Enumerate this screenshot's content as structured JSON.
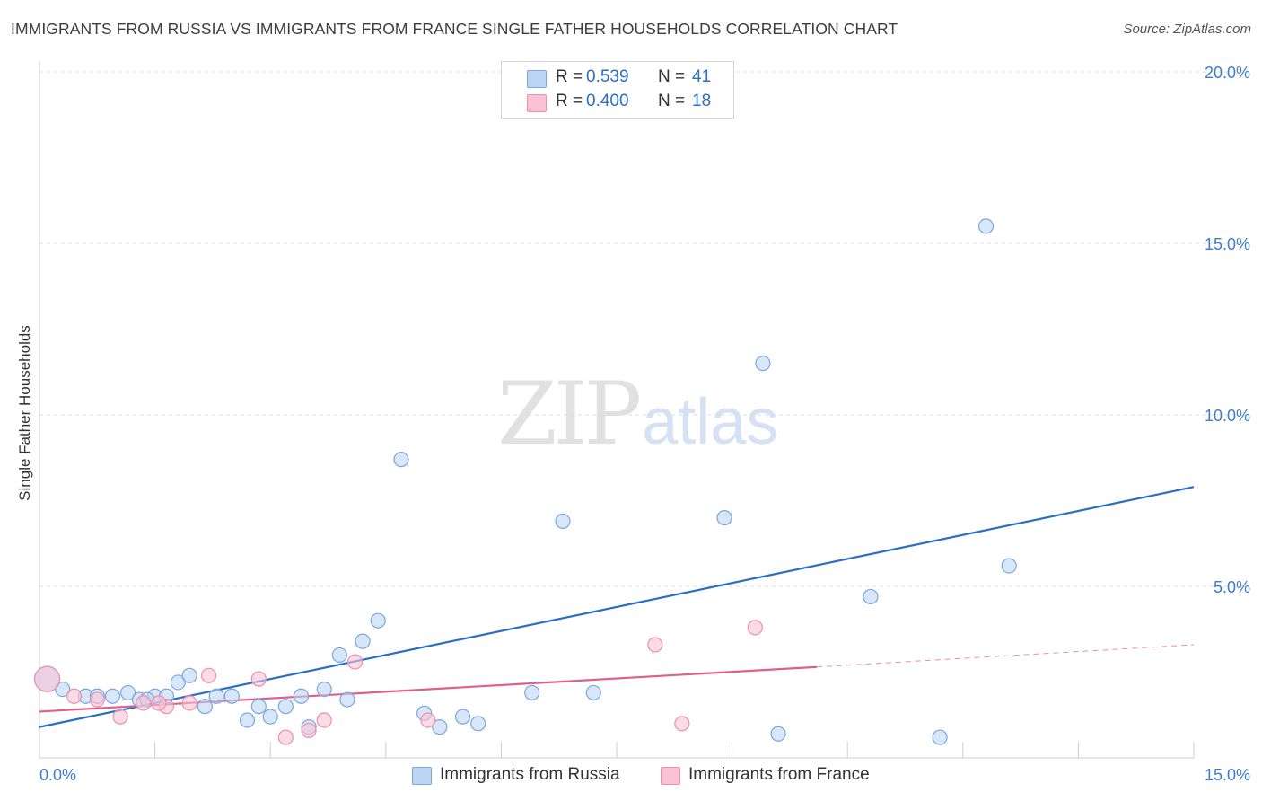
{
  "title": "IMMIGRANTS FROM RUSSIA VS IMMIGRANTS FROM FRANCE SINGLE FATHER HOUSEHOLDS CORRELATION CHART",
  "source": "Source: ZipAtlas.com",
  "watermark": {
    "zip": "ZIP",
    "atlas": "atlas"
  },
  "legend": {
    "r_label": "R =",
    "n_label": "N =",
    "series": [
      {
        "name": "Immigrants from Russia",
        "r": "0.539",
        "n": "41"
      },
      {
        "name": "Immigrants from France",
        "r": "0.400",
        "n": "18"
      }
    ]
  },
  "colors": {
    "russia_fill": "#bcd5f5",
    "russia_stroke": "#7aa7df",
    "russia_line": "#2a6ec6",
    "france_fill": "#f9c3d3",
    "france_stroke": "#ee8fae",
    "france_line": "#e0608c",
    "grid": "#dcdcdc",
    "tick_label": "#3f7bd0"
  },
  "chart_data": {
    "type": "scatter",
    "title": "IMMIGRANTS FROM RUSSIA VS IMMIGRANTS FROM FRANCE SINGLE FATHER HOUSEHOLDS CORRELATION CHART",
    "xlabel": "",
    "ylabel": "Single Father Households",
    "xlim": [
      0,
      15
    ],
    "ylim": [
      0,
      20
    ],
    "x_tick_labels": [
      "0.0%",
      "15.0%"
    ],
    "y_ticks": [
      5,
      10,
      15,
      20
    ],
    "y_tick_labels": [
      "5.0%",
      "10.0%",
      "15.0%",
      "20.0%"
    ],
    "x_minor_ticks": [
      1.5,
      3,
      4.5,
      6,
      7.5,
      9,
      10.5,
      12,
      13.5
    ],
    "series": [
      {
        "name": "Immigrants from Russia",
        "points": [
          [
            0.1,
            2.3
          ],
          [
            0.3,
            2.0
          ],
          [
            0.6,
            1.8
          ],
          [
            0.75,
            1.8
          ],
          [
            0.95,
            1.8
          ],
          [
            1.15,
            1.9
          ],
          [
            1.3,
            1.7
          ],
          [
            1.5,
            1.8
          ],
          [
            1.65,
            1.8
          ],
          [
            1.8,
            2.2
          ],
          [
            1.95,
            2.4
          ],
          [
            2.15,
            1.5
          ],
          [
            2.3,
            1.8
          ],
          [
            2.5,
            1.8
          ],
          [
            2.7,
            1.1
          ],
          [
            2.85,
            1.5
          ],
          [
            3.0,
            1.2
          ],
          [
            3.2,
            1.5
          ],
          [
            3.4,
            1.8
          ],
          [
            3.5,
            0.9
          ],
          [
            3.7,
            2.0
          ],
          [
            3.9,
            3.0
          ],
          [
            4.0,
            1.7
          ],
          [
            4.2,
            3.4
          ],
          [
            4.4,
            4.0
          ],
          [
            4.7,
            8.7
          ],
          [
            5.0,
            1.3
          ],
          [
            5.2,
            0.9
          ],
          [
            5.5,
            1.2
          ],
          [
            5.7,
            1.0
          ],
          [
            6.4,
            1.9
          ],
          [
            6.8,
            6.9
          ],
          [
            7.2,
            1.9
          ],
          [
            8.9,
            7.0
          ],
          [
            9.4,
            11.5
          ],
          [
            9.6,
            0.7
          ],
          [
            10.8,
            4.7
          ],
          [
            11.7,
            0.6
          ],
          [
            12.3,
            15.5
          ],
          [
            12.6,
            5.6
          ],
          [
            1.4,
            1.7
          ]
        ],
        "trend": {
          "x": [
            0,
            15
          ],
          "y": [
            0.9,
            7.9
          ]
        }
      },
      {
        "name": "Immigrants from France",
        "points": [
          [
            0.1,
            2.3
          ],
          [
            0.45,
            1.8
          ],
          [
            0.75,
            1.7
          ],
          [
            1.05,
            1.2
          ],
          [
            1.35,
            1.6
          ],
          [
            1.65,
            1.5
          ],
          [
            1.95,
            1.6
          ],
          [
            2.2,
            2.4
          ],
          [
            2.85,
            2.3
          ],
          [
            3.2,
            0.6
          ],
          [
            3.5,
            0.8
          ],
          [
            3.7,
            1.1
          ],
          [
            4.1,
            2.8
          ],
          [
            5.05,
            1.1
          ],
          [
            8.0,
            3.3
          ],
          [
            8.35,
            1.0
          ],
          [
            9.3,
            3.8
          ],
          [
            1.55,
            1.6
          ]
        ],
        "trend": {
          "x": [
            0,
            10.1
          ],
          "y": [
            1.35,
            2.65
          ]
        },
        "trend_extension": {
          "x": [
            10.1,
            15
          ],
          "y": [
            2.65,
            3.3
          ]
        }
      }
    ]
  }
}
